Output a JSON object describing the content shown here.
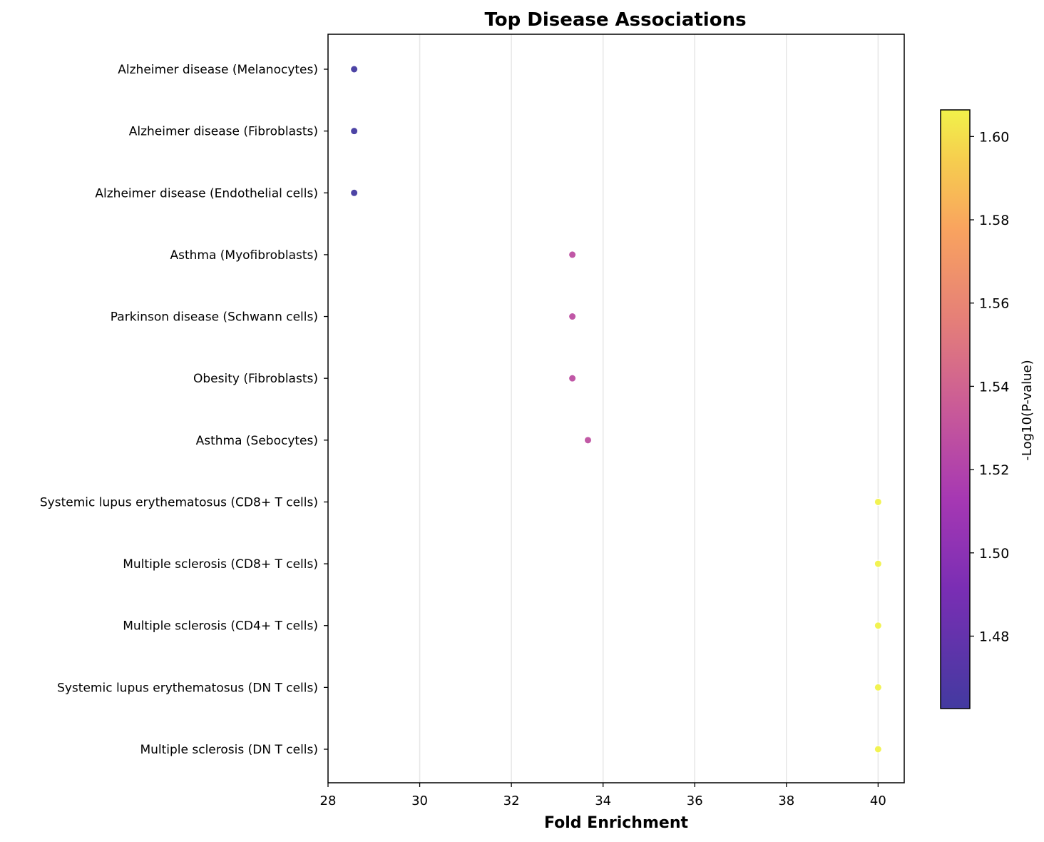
{
  "chart_data": {
    "type": "scatter",
    "title": "Top Disease Associations",
    "xlabel": "Fold Enrichment",
    "ylabel": "",
    "xlim": [
      28,
      40.57
    ],
    "x_ticks": [
      "28",
      "30",
      "32",
      "34",
      "36",
      "38",
      "40"
    ],
    "x_tick_values": [
      28,
      30,
      32,
      34,
      36,
      38,
      40
    ],
    "grid": "vertical",
    "colormap": "plasma",
    "colorbar": {
      "label": "-Log10(P-value)",
      "range": [
        1.4626,
        1.6064
      ],
      "ticks": [
        "1.48",
        "1.50",
        "1.52",
        "1.54",
        "1.56",
        "1.58",
        "1.60"
      ],
      "tick_values": [
        1.48,
        1.5,
        1.52,
        1.54,
        1.56,
        1.58,
        1.6
      ]
    },
    "categories": [
      "Alzheimer disease (Melanocytes)",
      "Alzheimer disease (Fibroblasts)",
      "Alzheimer disease (Endothelial cells)",
      "Asthma (Myofibroblasts)",
      "Parkinson disease (Schwann cells)",
      "Obesity (Fibroblasts)",
      "Asthma (Sebocytes)",
      "Systemic lupus erythematosus (CD8+ T cells)",
      "Multiple sclerosis (CD8+ T cells)",
      "Multiple sclerosis (CD4+ T cells)",
      "Systemic lupus erythematosus (DN T cells)",
      "Multiple sclerosis (DN T cells)"
    ],
    "fold_enrichment": [
      28.57,
      28.57,
      28.57,
      33.33,
      33.33,
      33.33,
      33.67,
      40.0,
      40.0,
      40.0,
      40.0,
      40.0
    ],
    "neg_log10_p": [
      1.4626,
      1.4626,
      1.4626,
      1.527,
      1.527,
      1.527,
      1.528,
      1.6064,
      1.6064,
      1.6064,
      1.6064,
      1.6064
    ]
  }
}
